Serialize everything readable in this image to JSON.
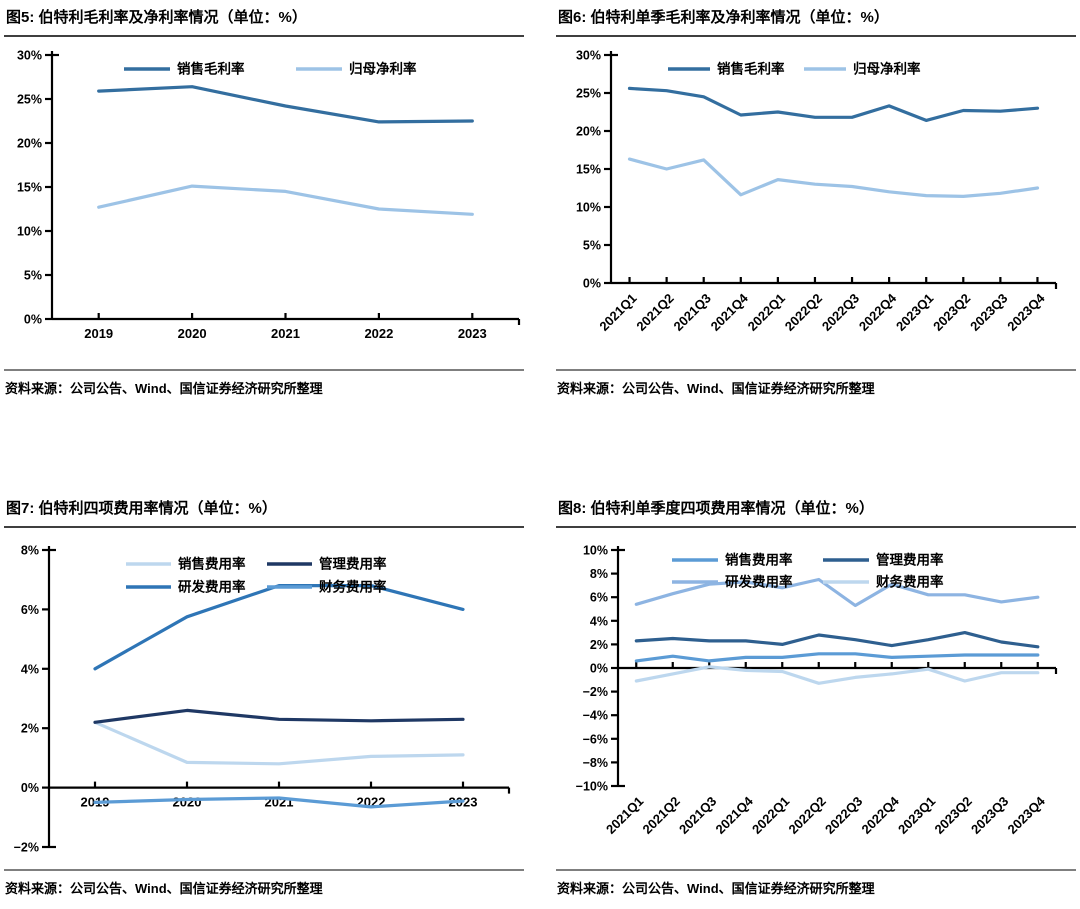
{
  "source_text": "资料来源：公司公告、Wind、国信证券经济研究所整理",
  "chart_data": [
    {
      "id": "fig5",
      "type": "line",
      "title": "图5: 伯特利毛利率及净利率情况（单位：%）",
      "source": "资料来源：公司公告、Wind、国信证券经济研究所整理",
      "categories": [
        "2019",
        "2020",
        "2021",
        "2022",
        "2023"
      ],
      "ylim": [
        0,
        30
      ],
      "ystep": 5,
      "grid": false,
      "legend_position": "top",
      "series": [
        {
          "name": "销售毛利率",
          "color": "#336E9F",
          "values": [
            25.9,
            26.4,
            24.2,
            22.4,
            22.5
          ]
        },
        {
          "name": "归母净利率",
          "color": "#9DC3E6",
          "values": [
            12.7,
            15.1,
            14.5,
            12.5,
            11.9
          ]
        }
      ]
    },
    {
      "id": "fig6",
      "type": "line",
      "title": "图6: 伯特利单季毛利率及净利率情况（单位：%）",
      "source": "资料来源：公司公告、Wind、国信证券经济研究所整理",
      "categories": [
        "2021Q1",
        "2021Q2",
        "2021Q3",
        "2021Q4",
        "2022Q1",
        "2022Q2",
        "2022Q3",
        "2022Q4",
        "2023Q1",
        "2023Q2",
        "2023Q3",
        "2023Q4"
      ],
      "ylim": [
        0,
        30
      ],
      "ystep": 5,
      "grid": false,
      "legend_position": "top",
      "series": [
        {
          "name": "销售毛利率",
          "color": "#336E9F",
          "values": [
            25.6,
            25.3,
            24.5,
            22.1,
            22.5,
            21.8,
            21.8,
            23.3,
            21.4,
            22.7,
            22.6,
            23.0
          ]
        },
        {
          "name": "归母净利率",
          "color": "#9DC3E6",
          "values": [
            16.3,
            15.0,
            16.2,
            11.6,
            13.6,
            13.0,
            12.7,
            12.0,
            11.5,
            11.4,
            11.8,
            12.5
          ]
        }
      ]
    },
    {
      "id": "fig7",
      "type": "line",
      "title": "图7: 伯特利四项费用率情况（单位：%）",
      "source": "资料来源：公司公告、Wind、国信证券经济研究所整理",
      "categories": [
        "2019",
        "2020",
        "2021",
        "2022",
        "2023"
      ],
      "ylim": [
        -2,
        8
      ],
      "ystep": 2,
      "grid": false,
      "legend_position": "top",
      "series": [
        {
          "name": "销售费用率",
          "color": "#BDD7EE",
          "values": [
            2.2,
            0.85,
            0.8,
            1.05,
            1.1
          ]
        },
        {
          "name": "管理费用率",
          "color": "#1F3864",
          "values": [
            2.2,
            2.6,
            2.3,
            2.25,
            2.3
          ]
        },
        {
          "name": "研发费用率",
          "color": "#2E75B6",
          "values": [
            4.0,
            5.75,
            6.8,
            6.8,
            6.0
          ]
        },
        {
          "name": "财务费用率",
          "color": "#5B9BD5",
          "values": [
            -0.5,
            -0.4,
            -0.35,
            -0.65,
            -0.45
          ]
        }
      ]
    },
    {
      "id": "fig8",
      "type": "line",
      "title": "图8: 伯特利单季度四项费用率情况（单位：%）",
      "source": "资料来源：公司公告、Wind、国信证券经济研究所整理",
      "categories": [
        "2021Q1",
        "2021Q2",
        "2021Q3",
        "2021Q4",
        "2022Q1",
        "2022Q2",
        "2022Q3",
        "2022Q4",
        "2023Q1",
        "2023Q2",
        "2023Q3",
        "2023Q4"
      ],
      "ylim": [
        -10,
        10
      ],
      "ystep": 2,
      "grid": false,
      "legend_position": "top",
      "series": [
        {
          "name": "销售费用率",
          "color": "#5B9BD5",
          "values": [
            0.6,
            1.0,
            0.6,
            0.9,
            0.9,
            1.2,
            1.2,
            0.9,
            1.0,
            1.1,
            1.1,
            1.1
          ]
        },
        {
          "name": "管理费用率",
          "color": "#2E5F8F",
          "values": [
            2.3,
            2.5,
            2.3,
            2.3,
            2.0,
            2.8,
            2.4,
            1.9,
            2.4,
            3.0,
            2.2,
            1.8
          ]
        },
        {
          "name": "研发费用率",
          "color": "#8DB4E2",
          "values": [
            5.4,
            6.3,
            7.1,
            7.3,
            6.8,
            7.5,
            5.3,
            7.1,
            6.2,
            6.2,
            5.6,
            6.0
          ]
        },
        {
          "name": "财务费用率",
          "color": "#BDD7EE",
          "values": [
            -1.1,
            -0.5,
            0.1,
            -0.2,
            -0.3,
            -1.3,
            -0.8,
            -0.5,
            -0.1,
            -1.1,
            -0.4,
            -0.4
          ]
        }
      ]
    }
  ]
}
